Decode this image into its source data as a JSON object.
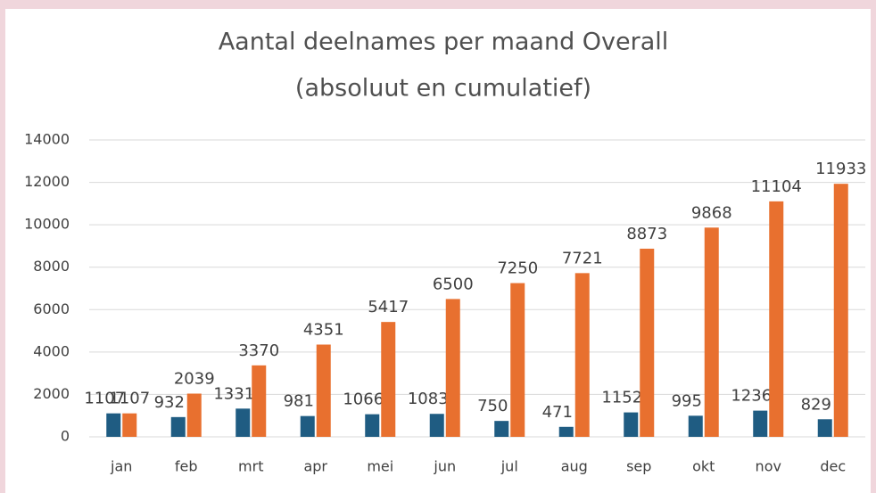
{
  "chart_data": {
    "type": "bar",
    "title": "Aantal deelnames per maand Overall",
    "subtitle": "(absoluut en cumulatief)",
    "categories": [
      "jan",
      "feb",
      "mrt",
      "apr",
      "mei",
      "jun",
      "jul",
      "aug",
      "sep",
      "okt",
      "nov",
      "dec"
    ],
    "series": [
      {
        "color": "#1f5c82",
        "values": [
          1107,
          932,
          1331,
          981,
          1066,
          1083,
          750,
          471,
          1152,
          995,
          1236,
          829
        ]
      },
      {
        "color": "#e8702f",
        "values": [
          1107,
          2039,
          3370,
          4351,
          5417,
          6500,
          7250,
          7721,
          8873,
          9868,
          11104,
          11933
        ]
      }
    ],
    "ylim": [
      0,
      14000
    ],
    "yticks": [
      0,
      2000,
      4000,
      6000,
      8000,
      10000,
      12000,
      14000
    ],
    "grid": true
  }
}
